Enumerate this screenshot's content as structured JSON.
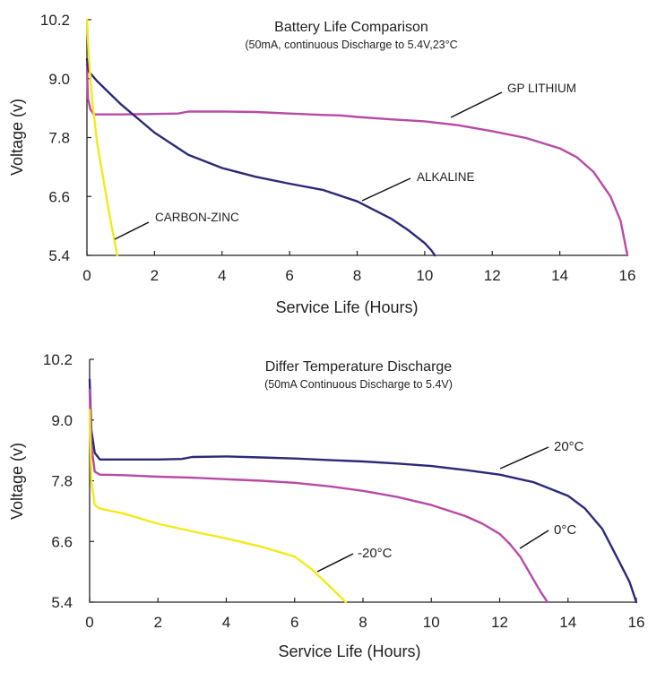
{
  "chart_data": [
    {
      "type": "line",
      "title": "Battery Life Comparison",
      "subtitle": "(50mA, continuous Discharge to 5.4V,23°C",
      "xlabel": "Service Life (Hours)",
      "ylabel": "Voltage (v)",
      "xlim": [
        0,
        16
      ],
      "ylim": [
        5.4,
        10.2
      ],
      "xticks": [
        "0",
        "2",
        "4",
        "6",
        "8",
        "10",
        "12",
        "14",
        "16"
      ],
      "yticks": [
        "5.4",
        "6.6",
        "7.8",
        "9.0",
        "10.2"
      ],
      "grid": false,
      "series": [
        {
          "name": "GP LITHIUM",
          "color": "#b84aa6",
          "x": [
            0,
            0.03,
            0.1,
            0.2,
            0.4,
            1,
            2,
            2.7,
            3,
            4,
            5,
            6,
            7,
            7.5,
            8,
            9,
            10,
            11,
            12,
            13,
            14,
            14.5,
            15,
            15.5,
            15.8,
            16
          ],
          "y": [
            9.3,
            8.6,
            8.38,
            8.27,
            8.27,
            8.27,
            8.28,
            8.29,
            8.33,
            8.33,
            8.32,
            8.29,
            8.26,
            8.25,
            8.22,
            8.17,
            8.13,
            8.05,
            7.93,
            7.79,
            7.58,
            7.4,
            7.1,
            6.6,
            6.1,
            5.4
          ]
        },
        {
          "name": "ALKALINE",
          "color": "#2b2a77",
          "x": [
            0,
            0.05,
            0.3,
            1,
            2,
            3,
            4,
            5,
            6,
            7,
            8,
            9,
            9.5,
            10,
            10.2,
            10.3
          ],
          "y": [
            9.4,
            9.15,
            8.95,
            8.48,
            7.9,
            7.45,
            7.18,
            7.0,
            6.86,
            6.73,
            6.5,
            6.15,
            5.92,
            5.65,
            5.5,
            5.4
          ]
        },
        {
          "name": "CARBON-ZINC",
          "color": "#f2ea1a",
          "x": [
            0,
            0.05,
            0.15,
            0.3,
            0.5,
            0.7,
            0.9
          ],
          "y": [
            10.2,
            9.5,
            8.6,
            7.7,
            6.9,
            6.1,
            5.4
          ]
        }
      ],
      "annotations": [
        "GP LITHIUM",
        "ALKALINE",
        "CARBON-ZINC"
      ]
    },
    {
      "type": "line",
      "title": "Differ Temperature Discharge",
      "subtitle": "(50mA Continuous Discharge to 5.4V)",
      "xlabel": "Service Life (Hours)",
      "ylabel": "Voltage (v)",
      "xlim": [
        0,
        16
      ],
      "ylim": [
        5.4,
        10.2
      ],
      "xticks": [
        "0",
        "2",
        "4",
        "6",
        "8",
        "10",
        "12",
        "14",
        "16"
      ],
      "yticks": [
        "5.4",
        "6.6",
        "7.8",
        "9.0",
        "10.2"
      ],
      "grid": false,
      "series": [
        {
          "name": "20°C",
          "color": "#2b2a77",
          "x": [
            0,
            0.05,
            0.15,
            0.3,
            1,
            2,
            2.7,
            3,
            4,
            5,
            6,
            7,
            8,
            9,
            10,
            11,
            12,
            13,
            14,
            14.5,
            15,
            15.5,
            15.8,
            16
          ],
          "y": [
            9.8,
            8.8,
            8.35,
            8.22,
            8.22,
            8.22,
            8.23,
            8.27,
            8.28,
            8.26,
            8.24,
            8.21,
            8.18,
            8.14,
            8.09,
            8.01,
            7.92,
            7.77,
            7.5,
            7.25,
            6.85,
            6.2,
            5.8,
            5.4
          ]
        },
        {
          "name": "0°C",
          "color": "#b84aa6",
          "x": [
            0,
            0.05,
            0.15,
            0.3,
            1,
            2,
            3,
            4,
            5,
            6,
            7,
            8,
            9,
            10,
            11,
            11.5,
            12,
            12.3,
            12.6,
            12.9,
            13.2,
            13.4
          ],
          "y": [
            9.6,
            8.5,
            7.98,
            7.92,
            7.91,
            7.88,
            7.86,
            7.83,
            7.8,
            7.76,
            7.69,
            7.6,
            7.48,
            7.32,
            7.1,
            6.95,
            6.75,
            6.55,
            6.3,
            5.95,
            5.6,
            5.4
          ]
        },
        {
          "name": "-20°C",
          "color": "#f2ea1a",
          "x": [
            0,
            0.05,
            0.15,
            0.3,
            1,
            2,
            3,
            4,
            5,
            6,
            6.5,
            7,
            7.5
          ],
          "y": [
            9.2,
            7.8,
            7.32,
            7.25,
            7.15,
            6.95,
            6.8,
            6.66,
            6.5,
            6.3,
            6.05,
            5.73,
            5.4
          ]
        }
      ],
      "annotations": [
        "20°C",
        "0°C",
        "-20°C"
      ]
    }
  ]
}
